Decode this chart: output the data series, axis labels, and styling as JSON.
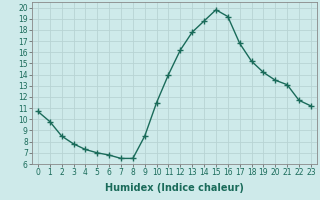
{
  "x": [
    0,
    1,
    2,
    3,
    4,
    5,
    6,
    7,
    8,
    9,
    10,
    11,
    12,
    13,
    14,
    15,
    16,
    17,
    18,
    19,
    20,
    21,
    22,
    23
  ],
  "y": [
    10.7,
    9.8,
    8.5,
    7.8,
    7.3,
    7.0,
    6.8,
    6.5,
    6.5,
    8.5,
    11.5,
    14.0,
    16.2,
    17.8,
    18.8,
    19.8,
    19.2,
    16.8,
    15.2,
    14.2,
    13.5,
    13.1,
    11.7,
    11.2
  ],
  "line_color": "#1a6b5a",
  "marker": "+",
  "markersize": 4,
  "markeredgewidth": 1.0,
  "linewidth": 1.0,
  "bg_color": "#ceeaea",
  "grid_color": "#b8d4d4",
  "xlabel": "Humidex (Indice chaleur)",
  "xlim": [
    -0.5,
    23.5
  ],
  "ylim": [
    6,
    20.5
  ],
  "xticks": [
    0,
    1,
    2,
    3,
    4,
    5,
    6,
    7,
    8,
    9,
    10,
    11,
    12,
    13,
    14,
    15,
    16,
    17,
    18,
    19,
    20,
    21,
    22,
    23
  ],
  "yticks": [
    6,
    7,
    8,
    9,
    10,
    11,
    12,
    13,
    14,
    15,
    16,
    17,
    18,
    19,
    20
  ],
  "tick_fontsize": 5.5,
  "xlabel_fontsize": 7.0
}
